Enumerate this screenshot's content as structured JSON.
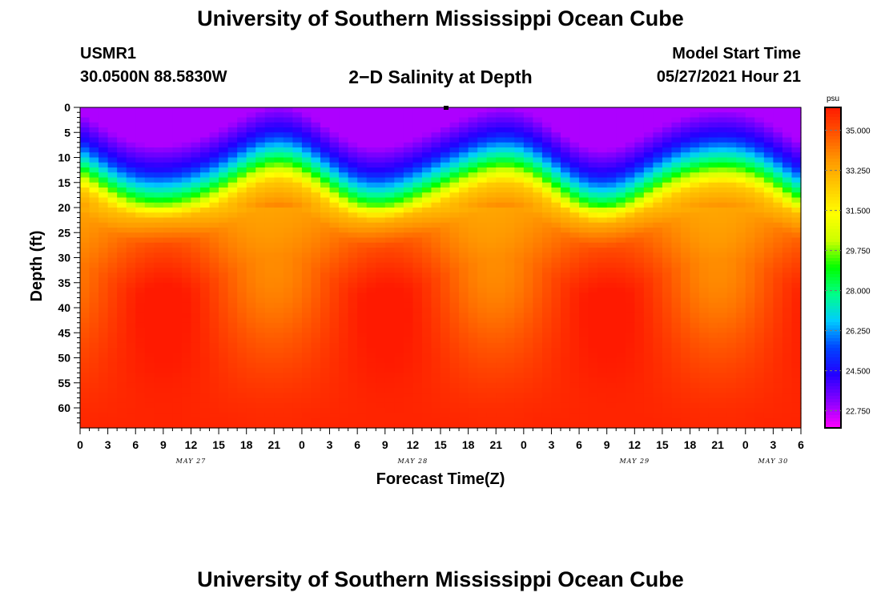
{
  "header": {
    "title": "University of Southern Mississippi Ocean Cube",
    "station_id": "USMR1",
    "station_coords": "30.0500N  88.5830W",
    "plot_title": "2−D Salinity at Depth",
    "start_label": "Model Start Time",
    "start_value": "05/27/2021 Hour 21"
  },
  "footer": {
    "title": "University of Southern Mississippi Ocean Cube"
  },
  "chart_data": {
    "type": "heatmap",
    "title": "2−D Salinity at Depth",
    "xlabel": "Forecast Time(Z)",
    "ylabel": "Depth (ft)",
    "x_hours_range": [
      0,
      78
    ],
    "ylim": [
      0,
      64
    ],
    "y_inverted": true,
    "x_tick_labels": [
      "0",
      "3",
      "6",
      "9",
      "12",
      "15",
      "18",
      "21",
      "0",
      "3",
      "6",
      "9",
      "12",
      "15",
      "18",
      "21",
      "0",
      "3",
      "6",
      "9",
      "12",
      "15",
      "18",
      "21",
      "0",
      "3",
      "6"
    ],
    "y_tick_labels": [
      "0",
      "5",
      "10",
      "15",
      "20",
      "25",
      "30",
      "35",
      "40",
      "45",
      "50",
      "55",
      "60"
    ],
    "day_labels": [
      {
        "label": "MAY 27",
        "hour": 12
      },
      {
        "label": "MAY 28",
        "hour": 36
      },
      {
        "label": "MAY 29",
        "hour": 60
      },
      {
        "label": "MAY 30",
        "hour": 75
      }
    ],
    "colorbar": {
      "unit": "psu",
      "range": [
        22.0,
        36.0
      ],
      "tick_labels": [
        "35.000",
        "33.250",
        "31.500",
        "29.750",
        "28.000",
        "26.250",
        "24.500",
        "22.750"
      ],
      "colors": [
        "#ff00ff",
        "#8800ff",
        "#2200ff",
        "#0044ff",
        "#00ccff",
        "#00ff88",
        "#00ff00",
        "#ccff00",
        "#ffff00",
        "#ffcc00",
        "#ff9900",
        "#ff5500",
        "#ff1a00"
      ]
    },
    "salinity_profile_samples": [
      {
        "depth_ft": 0,
        "psu": 22.8
      },
      {
        "depth_ft": 5,
        "psu": 24.5
      },
      {
        "depth_ft": 10,
        "psu": 28.0
      },
      {
        "depth_ft": 15,
        "psu": 32.5
      },
      {
        "depth_ft": 20,
        "psu": 34.0
      },
      {
        "depth_ft": 30,
        "psu": 35.0
      },
      {
        "depth_ft": 45,
        "psu": 35.5
      },
      {
        "depth_ft": 60,
        "psu": 35.8
      }
    ]
  }
}
